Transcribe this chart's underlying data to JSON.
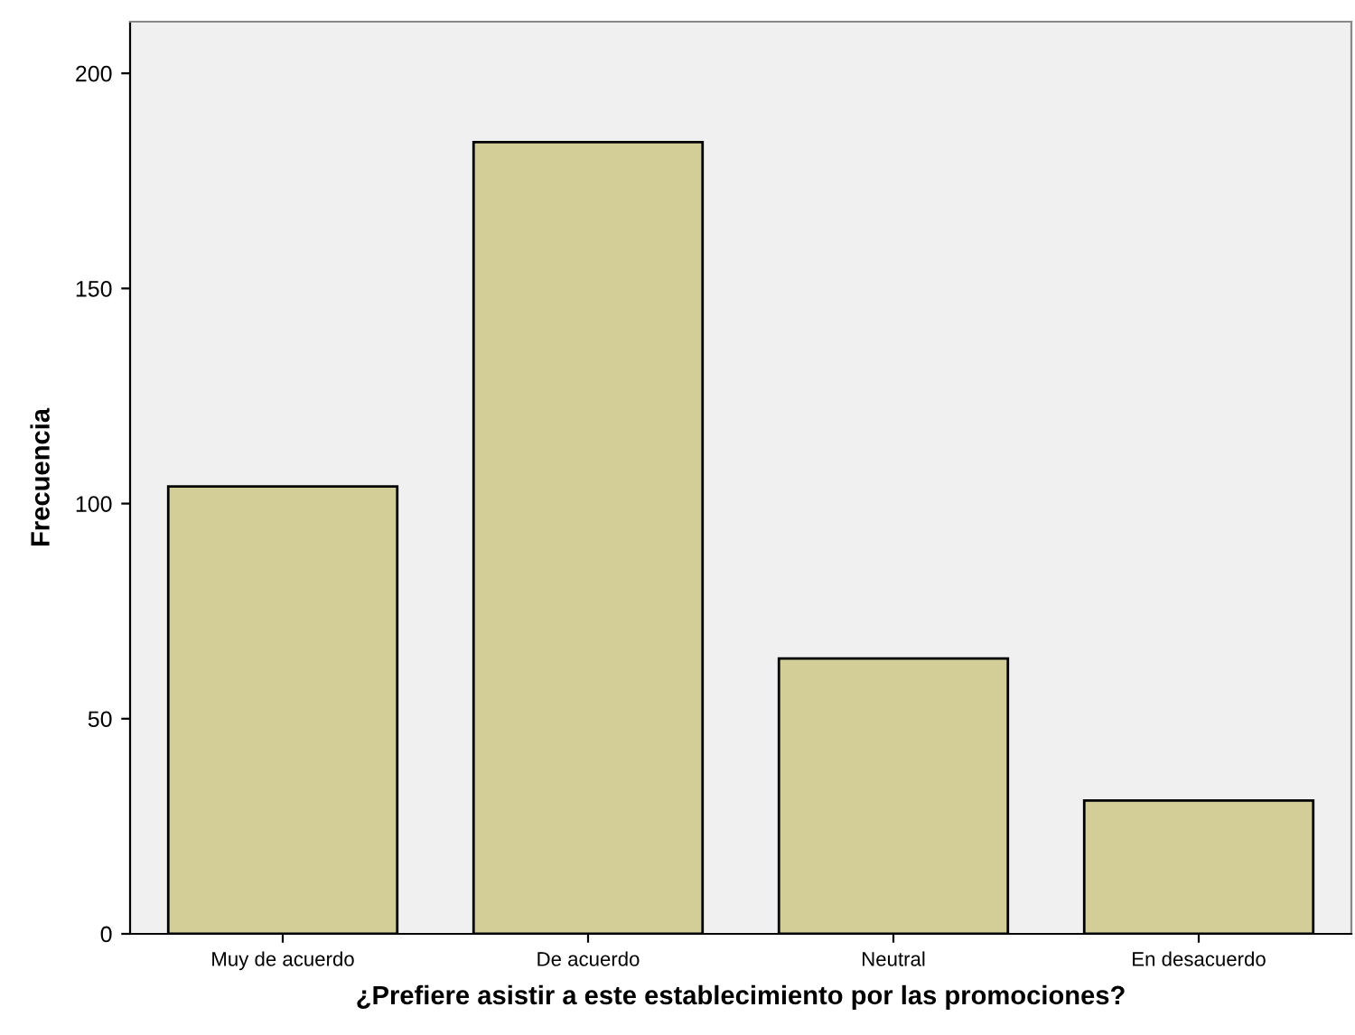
{
  "chart_data": {
    "type": "bar",
    "xlabel": "¿Prefiere asistir a este establecimiento por las promociones?",
    "ylabel": "Frecuencia",
    "categories": [
      "Muy de acuerdo",
      "De acuerdo",
      "Neutral",
      "En desacuerdo"
    ],
    "values": [
      104,
      184,
      64,
      31
    ],
    "color": "#d3ce97",
    "ylim": [
      0,
      212
    ],
    "yticks": [
      0,
      50,
      100,
      150,
      200
    ],
    "grid": false,
    "legend": false
  }
}
